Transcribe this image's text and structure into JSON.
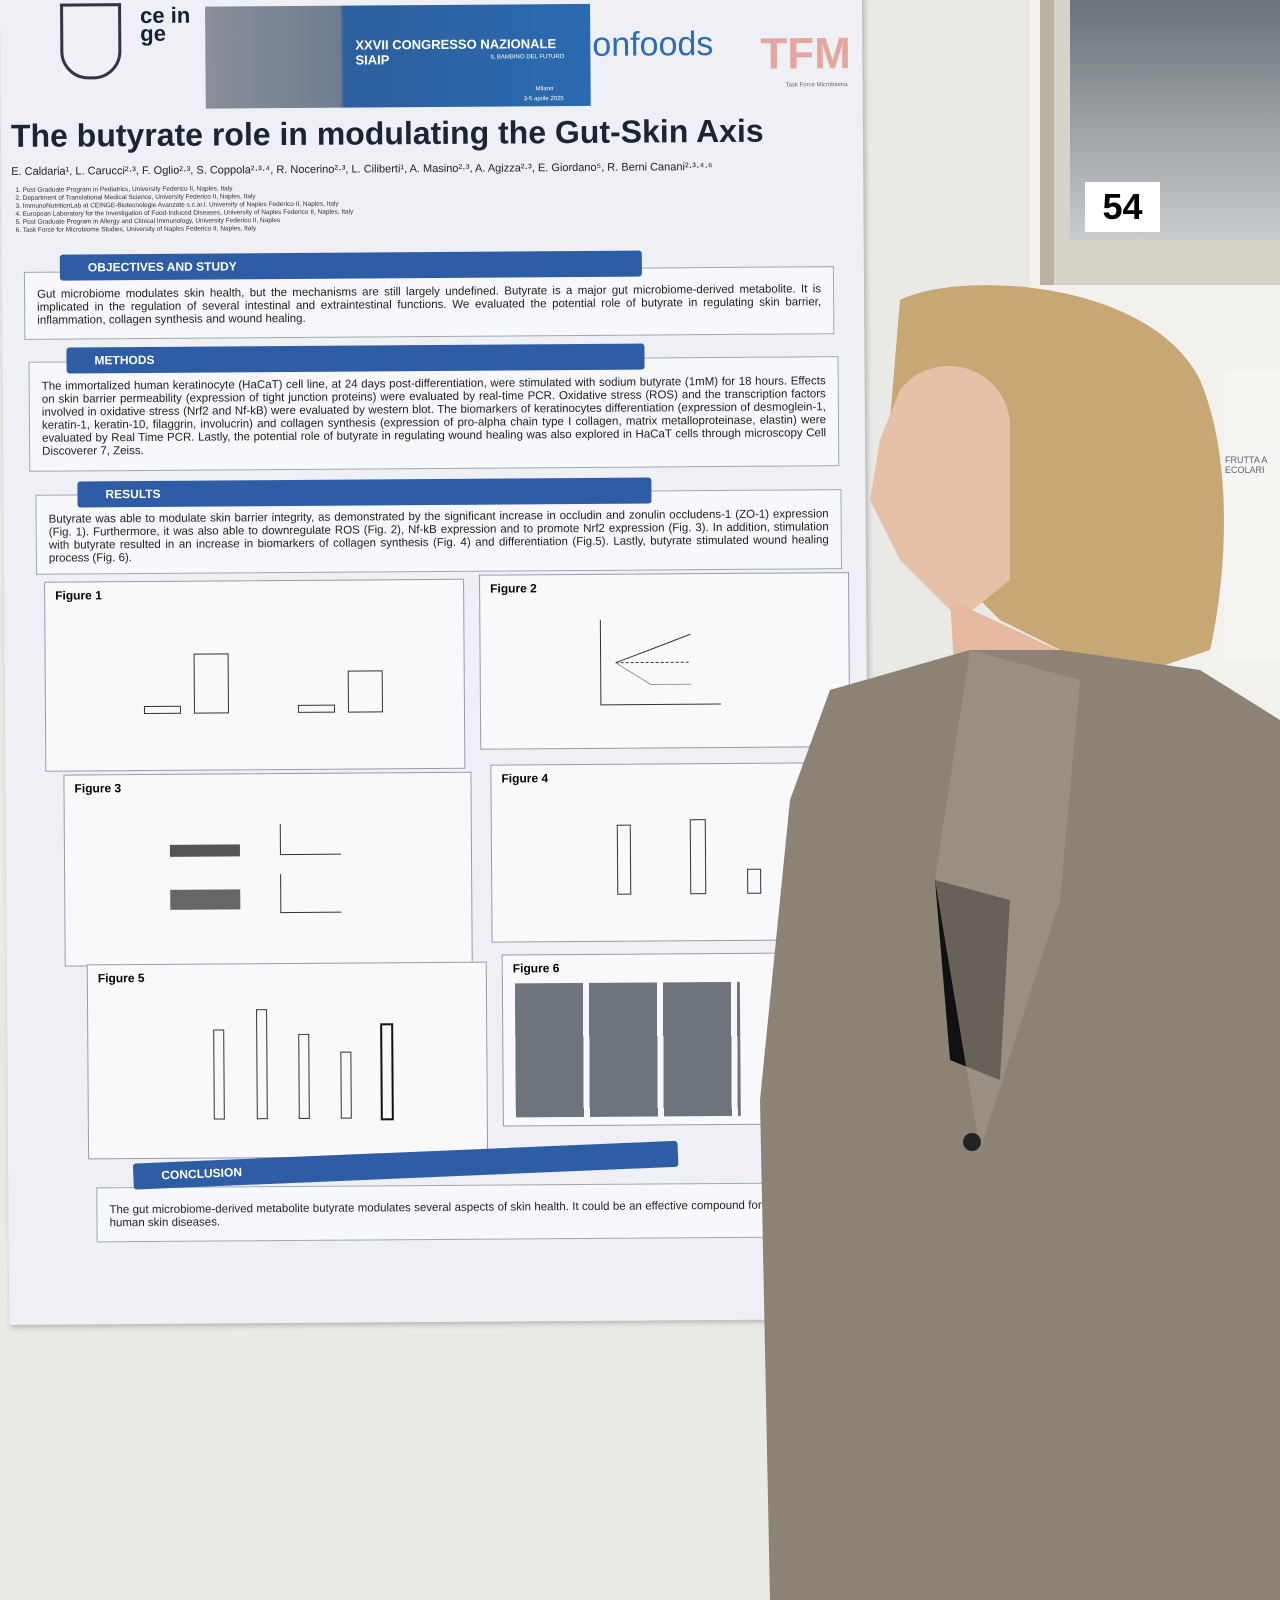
{
  "header": {
    "logo_1": "ce in ge",
    "banner_title": "XXVII CONGRESSO NAZIONALE SIAIP",
    "banner_subtitle": "IL BAMBINO DEL FUTURO",
    "banner_place": "Milano",
    "banner_date": "3-5 aprile 2025",
    "logo_2": "onfoods",
    "logo_3": "TFM",
    "logo_3_caption": "Task Force Microbioma"
  },
  "title": "The butyrate role in modulating the Gut-Skin Axis",
  "authors": "E. Caldaria¹, L. Carucci²·³, F. Oglio²·³, S. Coppola²·³·⁴, R. Nocerino²·³, L. Ciliberti¹, A. Masino²·³, A. Agizza²·³, E. Giordano⁵, R. Berni Canani²·³·⁴·⁶",
  "affiliations": [
    "1. Post Graduate Program in Pediatrics, University Federico II, Naples, Italy",
    "2. Department of Translational Medical Science, University Federico II, Naples, Italy",
    "3. ImmunoNutritionLab at CEINGE-Biotecnologie Avanzate s.c.ar.l. University of Naples Federico II, Naples, Italy",
    "4. European Laboratory for the Investigation of Food-Induced Diseases, University of Naples Federico II, Naples, Italy",
    "5. Post Graduate Program in Allergy and Clinical Immunology, University Federico II, Naples",
    "6. Task Force for Microbiome Studies, University of Naples Federico II, Naples, Italy"
  ],
  "sections": [
    {
      "heading": "OBJECTIVES AND STUDY",
      "text": "Gut microbiome modulates skin health, but the mechanisms are still largely undefined. Butyrate is a major gut microbiome-derived metabolite. It is implicated in the regulation of several intestinal and extraintestinal functions. We evaluated the potential role of butyrate in regulating skin barrier, inflammation, collagen synthesis and wound healing."
    },
    {
      "heading": "METHODS",
      "text": "The immortalized human keratinocyte (HaCaT) cell line, at 24 days post-differentiation, were stimulated with sodium butyrate (1mM) for 18 hours. Effects on skin barrier permeability (expression of tight junction proteins) were evaluated by real-time PCR. Oxidative stress (ROS) and the transcription factors involved in oxidative stress (Nrf2 and Nf-kB) were evaluated by western blot. The biomarkers of keratinocytes differentiation (expression of desmoglein-1, keratin-1, keratin-10, filaggrin, involucrin) and collagen synthesis (expression of pro-alpha chain type I collagen, matrix metalloproteinase, elastin) were evaluated by Real Time PCR. Lastly, the potential role of butyrate in regulating wound healing was also explored in HaCaT cells through microscopy Cell Discoverer 7, Zeiss."
    },
    {
      "heading": "RESULTS",
      "text": "Butyrate was able to modulate skin barrier integrity, as demonstrated by the significant increase in occludin and zonulin occludens-1 (ZO-1) expression (Fig. 1). Furthermore, it was also able to downregulate ROS (Fig. 2), Nf-kB expression and to promote Nrf2 expression (Fig. 3). In addition, stimulation with butyrate resulted in an increase in biomarkers of collagen synthesis (Fig. 4) and differentiation (Fig.5). Lastly, butyrate stimulated wound healing process (Fig. 6)."
    },
    {
      "heading": "CONCLUSION",
      "text": "The gut microbiome-derived metabolite butyrate modulates several aspects of skin health. It could be an effective compound for treating human skin diseases."
    }
  ],
  "figures": [
    "Figure 1",
    "Figure 2",
    "Figure 3",
    "Figure 4",
    "Figure 5",
    "Figure 6"
  ],
  "board_number": "54",
  "side_poster": [
    "FRUTTA A",
    "ECOLARI"
  ]
}
